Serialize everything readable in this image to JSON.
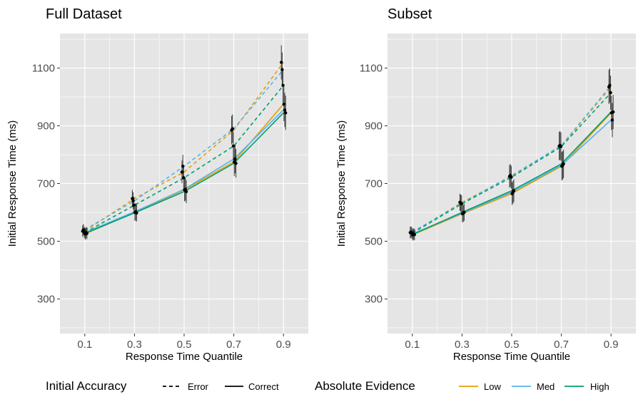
{
  "chart_data": [
    {
      "type": "line",
      "title": "Full Dataset",
      "xlabel": "Response Time Quantile",
      "ylabel": "Initial Response Time (ms)",
      "x": [
        0.1,
        0.3,
        0.5,
        0.7,
        0.9
      ],
      "x_ticks": [
        "0.1",
        "0.3",
        "0.5",
        "0.7",
        "0.9"
      ],
      "y_ticks": [
        "300",
        "500",
        "700",
        "900",
        "1100"
      ],
      "xlim": [
        0.0,
        1.0
      ],
      "ylim": [
        180,
        1220
      ],
      "grid": true,
      "series": [
        {
          "name": "Error-Low",
          "accuracy": "Error",
          "evidence": "Low",
          "values": [
            535,
            648,
            740,
            885,
            1120
          ]
        },
        {
          "name": "Error-Med",
          "accuracy": "Error",
          "evidence": "Med",
          "values": [
            540,
            640,
            760,
            890,
            1095
          ]
        },
        {
          "name": "Error-High",
          "accuracy": "Error",
          "evidence": "High",
          "values": [
            530,
            625,
            720,
            830,
            1040
          ]
        },
        {
          "name": "Correct-Low",
          "accuracy": "Correct",
          "evidence": "Low",
          "values": [
            525,
            600,
            678,
            775,
            975
          ]
        },
        {
          "name": "Correct-Med",
          "accuracy": "Correct",
          "evidence": "Med",
          "values": [
            530,
            602,
            680,
            785,
            955
          ]
        },
        {
          "name": "Correct-High",
          "accuracy": "Correct",
          "evidence": "High",
          "values": [
            527,
            598,
            672,
            770,
            945
          ]
        }
      ]
    },
    {
      "type": "line",
      "title": "Subset",
      "xlabel": "Response Time Quantile",
      "ylabel": "Initial Response Time (ms)",
      "x": [
        0.1,
        0.3,
        0.5,
        0.7,
        0.9
      ],
      "x_ticks": [
        "0.1",
        "0.3",
        "0.5",
        "0.7",
        "0.9"
      ],
      "y_ticks": [
        "300",
        "500",
        "700",
        "900",
        "1100"
      ],
      "xlim": [
        0.0,
        1.0
      ],
      "ylim": [
        180,
        1220
      ],
      "grid": true,
      "series": [
        {
          "name": "Error-Low",
          "accuracy": "Error",
          "evidence": "Low",
          "values": [
            530,
            635,
            725,
            830,
            1035
          ]
        },
        {
          "name": "Error-Med",
          "accuracy": "Error",
          "evidence": "Med",
          "values": [
            532,
            632,
            728,
            832,
            1040
          ]
        },
        {
          "name": "Error-High",
          "accuracy": "Error",
          "evidence": "High",
          "values": [
            528,
            630,
            722,
            828,
            1015
          ]
        },
        {
          "name": "Correct-Low",
          "accuracy": "Correct",
          "evidence": "Low",
          "values": [
            522,
            595,
            665,
            760,
            945
          ]
        },
        {
          "name": "Correct-Med",
          "accuracy": "Correct",
          "evidence": "Med",
          "values": [
            525,
            597,
            670,
            763,
            920
          ]
        },
        {
          "name": "Correct-High",
          "accuracy": "Correct",
          "evidence": "High",
          "values": [
            523,
            600,
            675,
            768,
            948
          ]
        }
      ]
    }
  ],
  "legend": {
    "accuracy_title": "Initial Accuracy",
    "accuracy_items": [
      {
        "label": "Error",
        "style": "dashed"
      },
      {
        "label": "Correct",
        "style": "solid"
      }
    ],
    "evidence_title": "Absolute Evidence",
    "evidence_items": [
      {
        "label": "Low",
        "color": "#E69F00"
      },
      {
        "label": "Med",
        "color": "#56B4E9"
      },
      {
        "label": "High",
        "color": "#009E73"
      }
    ],
    "placement": "bottom"
  },
  "colors": {
    "panel_background": "#e5e5e5",
    "grid": "#ffffff",
    "point": "#000000",
    "error_bar": "#000000"
  }
}
